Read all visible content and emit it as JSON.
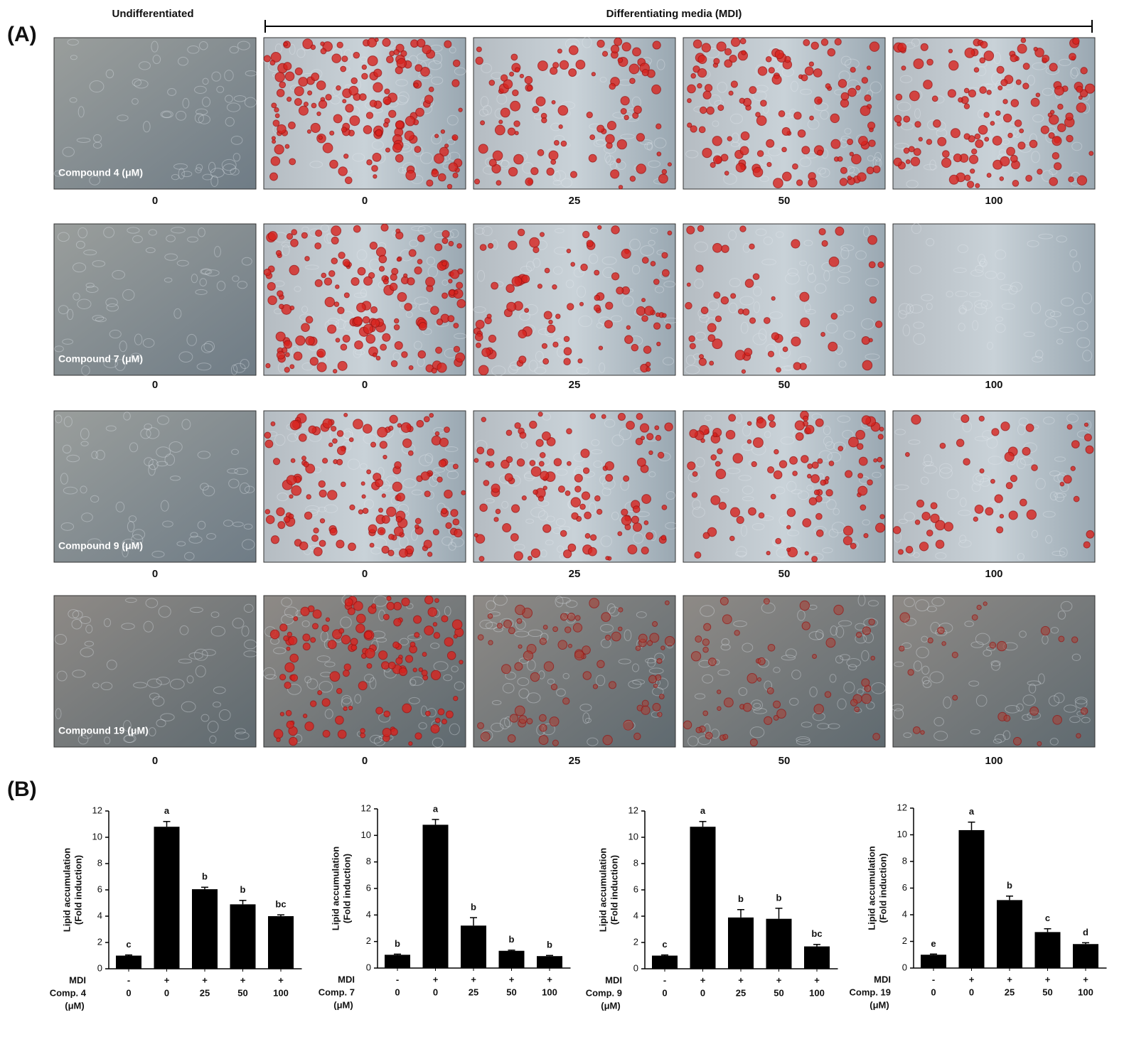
{
  "panel_labels": [
    "(A)",
    "(B)"
  ],
  "panel_a": {
    "header_left": "Undifferentiated",
    "header_right": "Differentiating media (MDI)",
    "rows": [
      {
        "compound": "Compound 4 (μM)",
        "doses": [
          "0",
          "0",
          "25",
          "50",
          "100"
        ]
      },
      {
        "compound": "Compound 7 (μM)",
        "doses": [
          "0",
          "0",
          "25",
          "50",
          "100"
        ]
      },
      {
        "compound": "Compound 9 (μM)",
        "doses": [
          "0",
          "0",
          "25",
          "50",
          "100"
        ]
      },
      {
        "compound": "Compound 19 (μM)",
        "doses": [
          "0",
          "0",
          "25",
          "50",
          "100"
        ]
      }
    ]
  },
  "chart_data": [
    {
      "type": "bar",
      "ylabel_lines": [
        "Lipid accumulation",
        "(Fold induction)"
      ],
      "ylim": [
        0,
        12
      ],
      "yticks": [
        0,
        2,
        4,
        6,
        8,
        10,
        12
      ],
      "categories": [
        "0",
        "0",
        "25",
        "50",
        "100"
      ],
      "mdi_label": "MDI",
      "mdi": [
        "-",
        "+",
        "+",
        "+",
        "+"
      ],
      "x_label": "Comp. 4",
      "x_unit": "(μM)",
      "color": "#000000",
      "values": [
        1.0,
        10.8,
        6.05,
        4.9,
        4.0
      ],
      "errors": [
        0.05,
        0.4,
        0.15,
        0.3,
        0.1
      ],
      "annotations": [
        "c",
        "a",
        "b",
        "b",
        "bc"
      ]
    },
    {
      "type": "bar",
      "ylabel_lines": [
        "Lipid accumulation",
        "(Fold induction)"
      ],
      "ylim": [
        0,
        12
      ],
      "yticks": [
        0,
        2,
        4,
        6,
        8,
        10,
        12
      ],
      "categories": [
        "0",
        "0",
        "25",
        "50",
        "100"
      ],
      "mdi_label": "MDI",
      "mdi": [
        "-",
        "+",
        "+",
        "+",
        "+"
      ],
      "x_label": "Comp. 7",
      "x_unit": "(μM)",
      "color": "#000000",
      "values": [
        1.0,
        10.8,
        3.2,
        1.3,
        0.9
      ],
      "errors": [
        0.05,
        0.4,
        0.6,
        0.05,
        0.05
      ],
      "annotations": [
        "b",
        "a",
        "b",
        "b",
        "b"
      ]
    },
    {
      "type": "bar",
      "ylabel_lines": [
        "Lipid accumulation",
        "(Fold induction)"
      ],
      "ylim": [
        0,
        12
      ],
      "yticks": [
        0,
        2,
        4,
        6,
        8,
        10,
        12
      ],
      "categories": [
        "0",
        "0",
        "25",
        "50",
        "100"
      ],
      "mdi_label": "MDI",
      "mdi": [
        "-",
        "+",
        "+",
        "+",
        "+"
      ],
      "x_label": "Comp. 9",
      "x_unit": "(μM)",
      "color": "#000000",
      "values": [
        1.0,
        10.8,
        3.9,
        3.8,
        1.7
      ],
      "errors": [
        0.05,
        0.4,
        0.6,
        0.8,
        0.15
      ],
      "annotations": [
        "c",
        "a",
        "b",
        "b",
        "bc"
      ]
    },
    {
      "type": "bar",
      "ylabel_lines": [
        "Lipid accumulation",
        "(Fold induction)"
      ],
      "ylim": [
        0,
        12
      ],
      "yticks": [
        0,
        2,
        4,
        6,
        8,
        10,
        12
      ],
      "categories": [
        "0",
        "0",
        "25",
        "50",
        "100"
      ],
      "mdi_label": "MDI",
      "mdi": [
        "-",
        "+",
        "+",
        "+",
        "+"
      ],
      "x_label": "Comp. 19",
      "x_unit": "(μM)",
      "color": "#000000",
      "values": [
        1.0,
        10.35,
        5.1,
        2.7,
        1.8
      ],
      "errors": [
        0.05,
        0.6,
        0.3,
        0.25,
        0.1
      ],
      "annotations": [
        "e",
        "a",
        "b",
        "c",
        "d"
      ]
    }
  ]
}
